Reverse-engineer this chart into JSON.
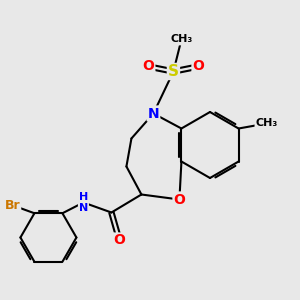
{
  "background_color": "#e8e8e8",
  "bond_color": "#000000",
  "atom_colors": {
    "N": "#0000ff",
    "O": "#ff0000",
    "S": "#cccc00",
    "Br": "#cc7700",
    "H": "#008888",
    "C": "#000000"
  },
  "figsize": [
    3.0,
    3.0
  ],
  "dpi": 100
}
